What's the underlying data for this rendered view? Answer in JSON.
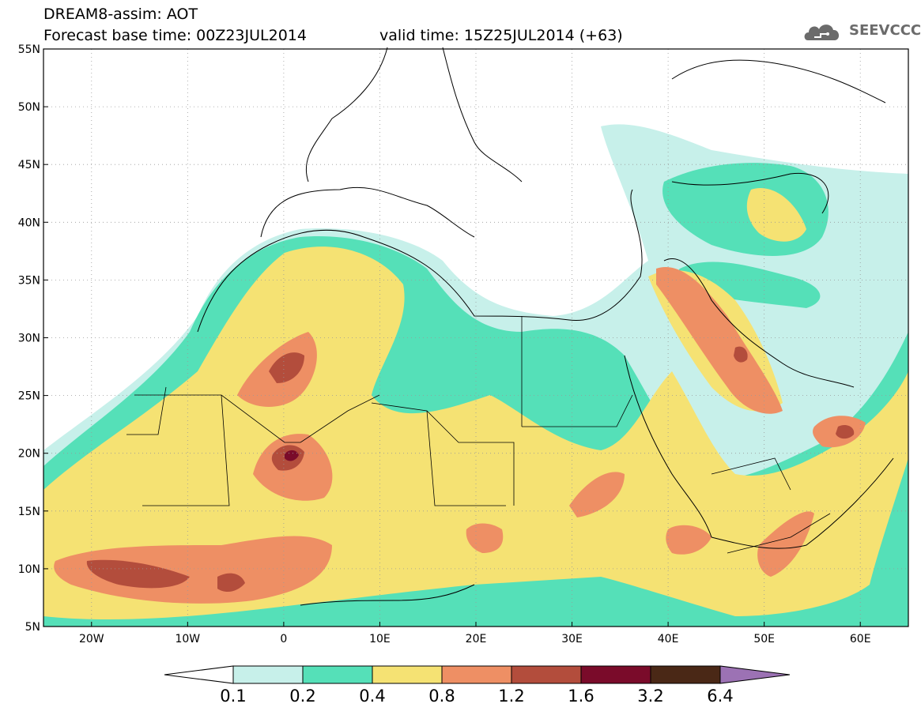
{
  "header": {
    "title": "DREAM8-assim: AOT",
    "base_time": "Forecast base time: 00Z23JUL2014",
    "valid_time": "valid time: 15Z25JUL2014 (+63)",
    "logo_text": "SEEVCCC",
    "logo_icon": "cloud-icon"
  },
  "map": {
    "lon_range": [
      -25,
      65
    ],
    "lat_range": [
      5,
      55
    ],
    "lon_ticks": [
      "20W",
      "10W",
      "0",
      "10E",
      "20E",
      "30E",
      "40E",
      "50E",
      "60E"
    ],
    "lat_ticks": [
      "5N",
      "10N",
      "15N",
      "20N",
      "25N",
      "30N",
      "35N",
      "40N",
      "45N",
      "50N",
      "55N"
    ],
    "grid": true,
    "colors": {
      "c01": "#c7f0ea",
      "c02": "#55e0b8",
      "c04": "#f5e273",
      "c08": "#ee8f64",
      "c12": "#b34d3c",
      "c16": "#7a0b2a",
      "c32": "#4a2816",
      "c64": "#9c72b4"
    }
  },
  "colorbar": {
    "labels": [
      "0.1",
      "0.2",
      "0.4",
      "0.8",
      "1.2",
      "1.6",
      "3.2",
      "6.4"
    ],
    "colors": [
      "#c7f0ea",
      "#55e0b8",
      "#f5e273",
      "#ee8f64",
      "#b34d3c",
      "#7a0b2a",
      "#4a2816"
    ],
    "under_color": "#ffffff",
    "over_color": "#9c72b4"
  }
}
